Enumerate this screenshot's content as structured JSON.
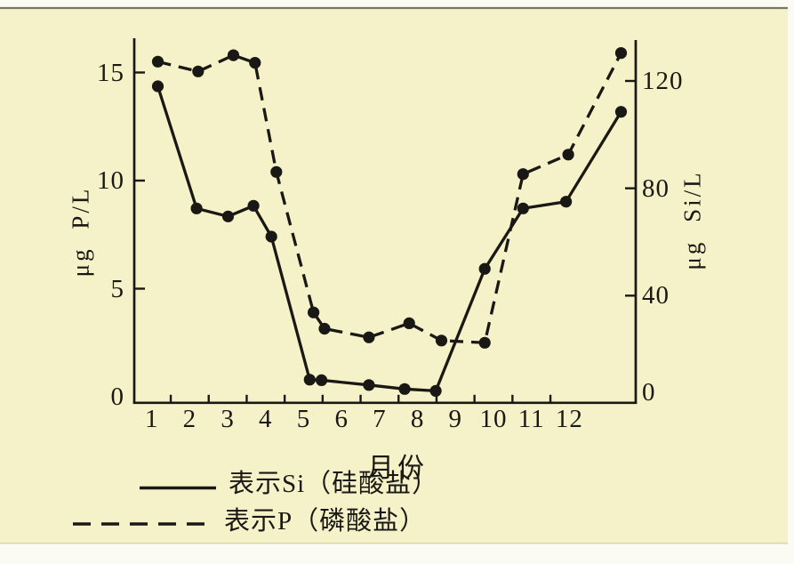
{
  "figure": {
    "paper_color": "#f5f1c8",
    "outer_color": "#fbfbf3",
    "top_edge_line_color": "#7a7566",
    "ink_color": "#1a1814"
  },
  "chart_data": {
    "type": "line",
    "title": "",
    "xlabel": "月份",
    "x_axis": {
      "label": "月份",
      "ticks": [
        1,
        2,
        3,
        4,
        5,
        6,
        7,
        8,
        9,
        10,
        11,
        12
      ],
      "tick_labels": [
        "1",
        "2",
        "3",
        "4",
        "5",
        "6",
        "7",
        "8",
        "9",
        "10",
        "11",
        "12"
      ],
      "range": [
        0.5,
        13.75
      ]
    },
    "left_axis": {
      "label": "μg P/L",
      "unit": "μg P/L",
      "ticks": [
        0,
        5,
        10,
        15
      ],
      "tick_labels": [
        "0",
        "5",
        "10",
        "15"
      ],
      "range": [
        0,
        16.8
      ]
    },
    "right_axis": {
      "label": "μg Si/L",
      "unit": "μg Si/L",
      "ticks": [
        0,
        40,
        80,
        120
      ],
      "tick_labels": [
        "0",
        "40",
        "80",
        "120"
      ],
      "range": [
        0,
        135
      ]
    },
    "grid": false,
    "legend_position": "below-left",
    "series": [
      {
        "name": "表示P（磷酸盐）",
        "substance": "P",
        "unit": "μg P/L",
        "axis": "left",
        "line_style": "dashed",
        "marker": "filled-circle",
        "months_nominal": [
          1,
          2,
          3,
          3.5,
          4,
          5,
          5.5,
          6,
          7,
          8,
          9,
          10,
          11,
          12
        ],
        "x_plot": [
          1.16,
          2.22,
          3.15,
          3.72,
          4.28,
          5.26,
          5.55,
          6.72,
          7.78,
          8.63,
          9.77,
          10.78,
          11.97,
          13.36
        ],
        "values": [
          15.5,
          15.05,
          15.8,
          15.45,
          10.4,
          3.9,
          3.15,
          2.75,
          3.4,
          2.6,
          2.5,
          10.3,
          11.2,
          15.9
        ]
      },
      {
        "name": "表示Si（硅酸盐）",
        "substance": "Si",
        "unit": "μg Si/L",
        "axis": "right",
        "line_style": "solid",
        "marker": "filled-circle",
        "months_nominal": [
          1,
          2,
          3,
          3.5,
          4,
          5,
          5.5,
          6,
          7,
          8,
          9,
          10,
          11,
          12
        ],
        "x_plot": [
          1.16,
          2.18,
          3.01,
          3.68,
          4.15,
          5.16,
          5.47,
          6.72,
          7.66,
          8.48,
          9.77,
          10.78,
          11.91,
          13.36
        ],
        "values": [
          118,
          72.5,
          69.5,
          73.5,
          62,
          8.7,
          8.5,
          6.7,
          5.2,
          4.5,
          50,
          72.5,
          75,
          108.5
        ]
      }
    ],
    "legend": [
      {
        "style": "solid",
        "label": "表示Si（硅酸盐）"
      },
      {
        "style": "dashed",
        "label": "表示P（磷酸盐）"
      }
    ]
  }
}
